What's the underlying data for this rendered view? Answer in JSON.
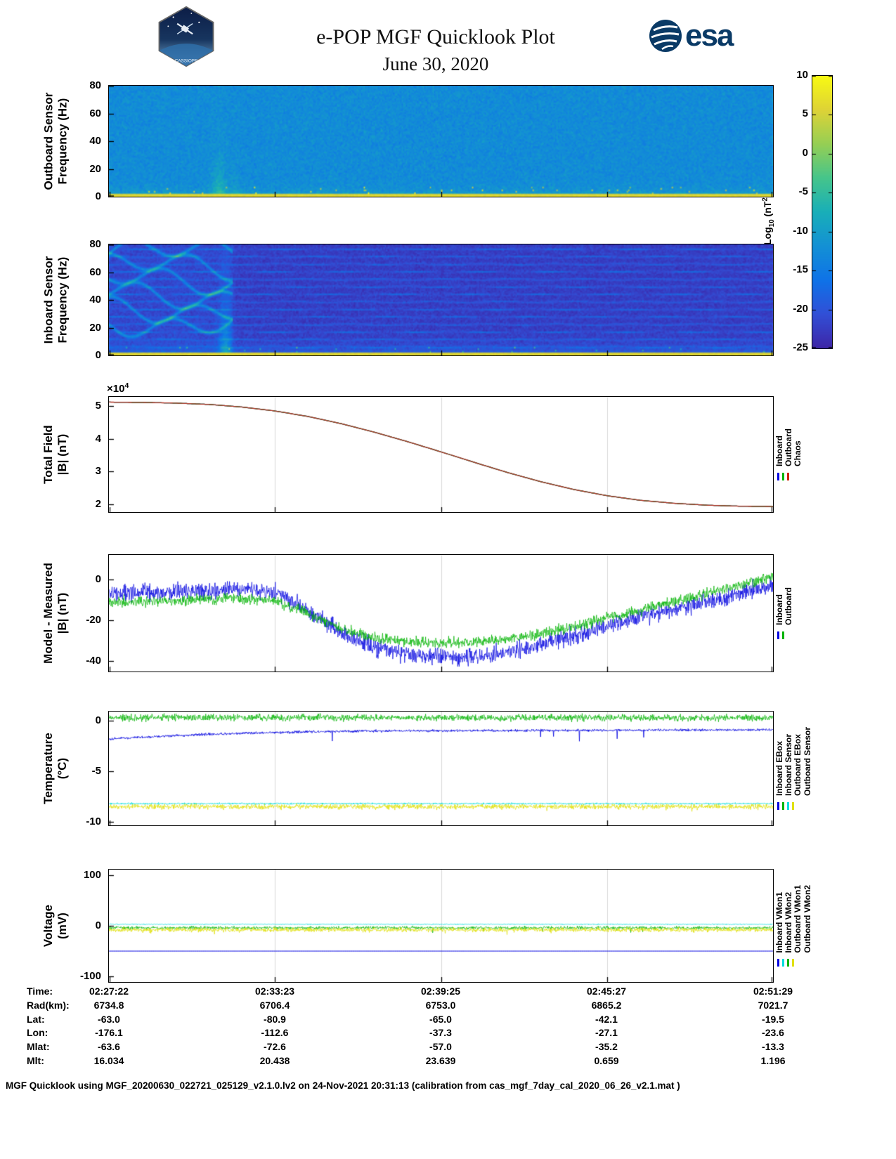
{
  "header": {
    "title": "e-POP MGF Quicklook Plot",
    "date": "June 30, 2020",
    "esa_text": "esa",
    "patch_text": "CASSIOPE"
  },
  "colorbar": {
    "label_prefix": "Log",
    "label_sub": "10",
    "label_mid": " (nT",
    "label_sup": "2",
    "label_suffix": "/Hz)",
    "ticks": [
      10,
      5,
      0,
      -5,
      -10,
      -15,
      -20,
      -25
    ],
    "range": [
      -25,
      10
    ]
  },
  "chart_data": [
    {
      "id": "outboard-spectrogram",
      "type": "heatmap",
      "ylabel": [
        "Outboard Sensor",
        "Frequency (Hz)"
      ],
      "ylim": [
        0,
        80
      ],
      "yticks": [
        0,
        20,
        40,
        60,
        80
      ],
      "heatmap": {
        "colormap": "parula",
        "background_log_power": -12.5,
        "noise_sigma": 2,
        "bottom_line_hz": 1.5,
        "bottom_line_log_power": 6,
        "plume_x_fraction": 0.165
      }
    },
    {
      "id": "inboard-spectrogram",
      "type": "heatmap",
      "ylabel": [
        "Inboard Sensor",
        "Frequency (Hz)"
      ],
      "ylim": [
        0,
        80
      ],
      "yticks": [
        0,
        20,
        40,
        60,
        80
      ],
      "heatmap": {
        "colormap": "parula",
        "background_log_power": -22.5,
        "noise_sigma": 1.5,
        "bottom_line_hz": 1.5,
        "bottom_line_log_power": 6,
        "plume_x_fraction": 0.175,
        "stripe_spacing_hz": 5.5,
        "left_chirps": true
      }
    },
    {
      "id": "total-field",
      "type": "line",
      "ylabel": [
        "Total Field",
        "|B| (nT)"
      ],
      "unit": "x10^4 nT",
      "scale_prefix": "×10",
      "scale_exp": "4",
      "ylim": [
        1.76,
        5.28
      ],
      "yticks": [
        5,
        4,
        3,
        2
      ],
      "x": [
        0,
        0.05,
        0.1,
        0.15,
        0.2,
        0.25,
        0.3,
        0.35,
        0.4,
        0.45,
        0.5,
        0.55,
        0.6,
        0.65,
        0.7,
        0.75,
        0.8,
        0.85,
        0.9,
        0.95,
        1
      ],
      "series": [
        {
          "name": "Inboard",
          "color": "#0000e0",
          "lw": 1.2,
          "values": [
            5.12,
            5.11,
            5.09,
            5.05,
            4.97,
            4.85,
            4.68,
            4.46,
            4.2,
            3.91,
            3.6,
            3.28,
            2.97,
            2.69,
            2.45,
            2.26,
            2.12,
            2.03,
            1.97,
            1.94,
            1.93
          ]
        },
        {
          "name": "Outboard",
          "color": "#00b300",
          "lw": 1.2,
          "values": [
            5.12,
            5.11,
            5.09,
            5.05,
            4.97,
            4.85,
            4.68,
            4.46,
            4.2,
            3.91,
            3.6,
            3.28,
            2.97,
            2.69,
            2.45,
            2.26,
            2.12,
            2.03,
            1.97,
            1.94,
            1.93
          ]
        },
        {
          "name": "Chaos",
          "color": "#b03020",
          "lw": 1.3,
          "values": [
            5.12,
            5.11,
            5.09,
            5.05,
            4.97,
            4.85,
            4.68,
            4.46,
            4.2,
            3.91,
            3.6,
            3.28,
            2.97,
            2.69,
            2.45,
            2.26,
            2.12,
            2.03,
            1.97,
            1.94,
            1.93
          ]
        }
      ],
      "legend": [
        {
          "label": "Inboard",
          "color": "#0000e0"
        },
        {
          "label": "Outboard",
          "color": "#00b300"
        },
        {
          "label": "Chaos",
          "color": "#cc2200"
        }
      ]
    },
    {
      "id": "model-measured",
      "type": "line",
      "ylabel": [
        "Model - Measured",
        "|B| (nT)"
      ],
      "ylim": [
        -45,
        12
      ],
      "yticks": [
        0,
        -20,
        -40
      ],
      "x": [
        0,
        0.05,
        0.1,
        0.15,
        0.2,
        0.25,
        0.3,
        0.35,
        0.4,
        0.45,
        0.5,
        0.55,
        0.6,
        0.65,
        0.7,
        0.75,
        0.8,
        0.85,
        0.9,
        0.95,
        1
      ],
      "series": [
        {
          "name": "Inboard",
          "color": "#0000e0",
          "lw": 0.7,
          "noise": 3.5,
          "values": [
            -7,
            -6.5,
            -6,
            -5.2,
            -4.5,
            -6,
            -15,
            -26,
            -33,
            -36.5,
            -38,
            -37.5,
            -35.5,
            -32,
            -27.5,
            -23,
            -18.5,
            -14.5,
            -10.5,
            -6.5,
            -3
          ]
        },
        {
          "name": "Outboard",
          "color": "#00b300",
          "lw": 0.7,
          "noise": 2.2,
          "values": [
            -11,
            -10.8,
            -10.5,
            -9.8,
            -9,
            -10.5,
            -16.5,
            -24,
            -28.5,
            -30.5,
            -31,
            -30.5,
            -29,
            -26.5,
            -23,
            -19,
            -15,
            -11,
            -7,
            -3,
            1.5
          ]
        }
      ],
      "legend": [
        {
          "label": "Inboard",
          "color": "#0000e0"
        },
        {
          "label": "Outboard",
          "color": "#00b300"
        }
      ]
    },
    {
      "id": "temperature",
      "type": "line",
      "ylabel": [
        "Temperature",
        "(°C)"
      ],
      "ylim": [
        -10.35,
        0.9
      ],
      "yticks": [
        0,
        -5,
        -10
      ],
      "x": [
        0,
        0.05,
        0.1,
        0.15,
        0.2,
        0.25,
        0.3,
        0.35,
        0.4,
        0.45,
        0.5,
        0.55,
        0.6,
        0.65,
        0.7,
        0.75,
        0.8,
        0.85,
        0.9,
        0.95,
        1
      ],
      "series": [
        {
          "name": "Inboard EBox",
          "color": "#0000e0",
          "lw": 0.8,
          "noise": 0.1,
          "spikes": -1.2,
          "values": [
            -1.8,
            -1.62,
            -1.48,
            -1.35,
            -1.25,
            -1.17,
            -1.1,
            -1.06,
            -1.03,
            -1.01,
            -1.0,
            -0.99,
            -0.98,
            -0.97,
            -0.96,
            -0.95,
            -0.94,
            -0.93,
            -0.92,
            -0.91,
            -0.9
          ]
        },
        {
          "name": "Inboard Sensor",
          "color": "#00b300",
          "lw": 0.7,
          "noise": 0.28,
          "values": [
            0.3
          ]
        },
        {
          "name": "Outboard Sensor",
          "color": "#e0e000",
          "lw": 0.7,
          "noise": 0.22,
          "spikes": -0.5,
          "values": [
            -8.5
          ]
        },
        {
          "name": "Outboard EBox",
          "color": "#00dddd",
          "lw": 0.8,
          "noise": 0.07,
          "values": [
            -8.2
          ]
        }
      ],
      "legend": [
        {
          "label": "Inboard EBox",
          "color": "#0000e0"
        },
        {
          "label": "Inboard Sensor",
          "color": "#00b300"
        },
        {
          "label": "Outboard EBox",
          "color": "#00dddd"
        },
        {
          "label": "Outboard Sensor",
          "color": "#e0e000"
        }
      ]
    },
    {
      "id": "voltage",
      "type": "line",
      "ylabel": [
        "Voltage",
        "(mV)"
      ],
      "ylim": [
        -111,
        111
      ],
      "yticks": [
        100,
        0,
        -100
      ],
      "x": [
        0,
        0.05,
        0.1,
        0.15,
        0.2,
        0.25,
        0.3,
        0.35,
        0.4,
        0.45,
        0.5,
        0.55,
        0.6,
        0.65,
        0.7,
        0.75,
        0.8,
        0.85,
        0.9,
        0.95,
        1
      ],
      "series": [
        {
          "name": "Inboard VMon1",
          "color": "#0000e0",
          "lw": 1.0,
          "values": [
            -50
          ]
        },
        {
          "name": "Inboard VMon2",
          "color": "#00dddd",
          "lw": 0.8,
          "noise": 0.8,
          "values": [
            3
          ]
        },
        {
          "name": "Outboard VMon1",
          "color": "#00b300",
          "lw": 0.7,
          "noise": 2.5,
          "spikes": -10,
          "values": [
            -4
          ]
        },
        {
          "name": "Outboard VMon2",
          "color": "#e0e000",
          "lw": 0.7,
          "noise": 3.5,
          "spikes": -8,
          "values": [
            -8
          ]
        }
      ],
      "legend": [
        {
          "label": "Inboard VMon1",
          "color": "#0000e0"
        },
        {
          "label": "Inboard VMon2",
          "color": "#00dddd"
        },
        {
          "label": "Outboard VMon1",
          "color": "#00b300"
        },
        {
          "label": "Outboard VMon2",
          "color": "#e0e000"
        }
      ]
    }
  ],
  "bottom_axis": {
    "rows": [
      {
        "label": "Time:",
        "values": [
          "02:27:22",
          "02:33:23",
          "02:39:25",
          "02:45:27",
          "02:51:29"
        ]
      },
      {
        "label": "Rad(km):",
        "values": [
          "6734.8",
          "6706.4",
          "6753.0",
          "6865.2",
          "7021.7"
        ]
      },
      {
        "label": "Lat:",
        "values": [
          "-63.0",
          "-80.9",
          "-65.0",
          "-42.1",
          "-19.5"
        ]
      },
      {
        "label": "Lon:",
        "values": [
          "-176.1",
          "-112.6",
          "-37.3",
          "-27.1",
          "-23.6"
        ]
      },
      {
        "label": "Mlat:",
        "values": [
          "-63.6",
          "-72.6",
          "-57.0",
          "-35.2",
          "-13.3"
        ]
      },
      {
        "label": "Mlt:",
        "values": [
          "16.034",
          "20.438",
          "23.639",
          "0.659",
          "1.196"
        ]
      }
    ]
  },
  "footer": "MGF Quicklook using MGF_20200630_022721_025129_v2.1.0.lv2 on 24-Nov-2021 20:31:13 (calibration from cas_mgf_7day_cal_2020_06_26_v2.1.mat )"
}
